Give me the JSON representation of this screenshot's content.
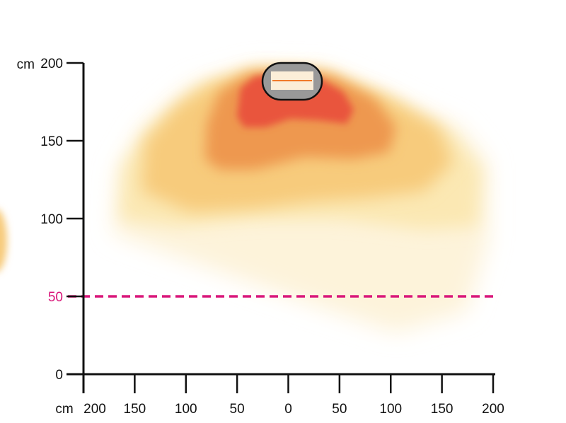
{
  "chart_data": {
    "type": "heatmap",
    "title": "",
    "x_axis": {
      "unit": "cm",
      "ticks": [
        "200",
        "150",
        "100",
        "50",
        "0",
        "50",
        "100",
        "150",
        "200"
      ]
    },
    "y_axis": {
      "unit": "cm",
      "ticks": [
        "0",
        "50",
        "100",
        "150",
        "200"
      ],
      "ylim": [
        0,
        200
      ]
    },
    "reference_line": {
      "y": 50,
      "label": "50",
      "color": "#d9177a",
      "style": "dashed"
    },
    "heat_zones": [
      {
        "level": "highest",
        "color": "#e9553c"
      },
      {
        "level": "high",
        "color": "#ee9850"
      },
      {
        "level": "medium",
        "color": "#f7cb7c"
      },
      {
        "level": "low",
        "color": "#fbe8b3"
      },
      {
        "level": "lowest",
        "color": "#fdf3da"
      }
    ],
    "source": {
      "icon": "heater-lamp-icon",
      "body_color": "#999999",
      "element_color": "#f07a2a"
    },
    "grid": false
  }
}
